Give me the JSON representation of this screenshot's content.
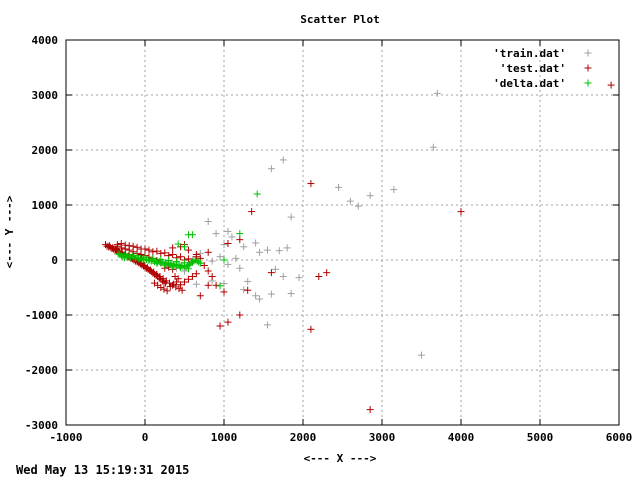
{
  "timestamp": "Wed May 13 15:19:31 2015",
  "chart_data": {
    "type": "scatter",
    "title": "Scatter Plot",
    "xlabel": "<--- X --->",
    "ylabel": "<--- Y --->",
    "xlim": [
      -1000,
      6000
    ],
    "ylim": [
      -3000,
      4000
    ],
    "xticks": [
      -1000,
      0,
      1000,
      2000,
      3000,
      4000,
      5000,
      6000
    ],
    "yticks": [
      -3000,
      -2000,
      -1000,
      0,
      1000,
      2000,
      3000,
      4000
    ],
    "grid": true,
    "legend_position": "top-right",
    "series": [
      {
        "name": "'train.dat'",
        "color": "#a0a0a0",
        "points": [
          [
            3700,
            3030
          ],
          [
            3650,
            2050
          ],
          [
            1750,
            1820
          ],
          [
            1600,
            1660
          ],
          [
            2450,
            1320
          ],
          [
            3150,
            1280
          ],
          [
            2850,
            1170
          ],
          [
            2600,
            1070
          ],
          [
            2700,
            980
          ],
          [
            1850,
            780
          ],
          [
            800,
            700
          ],
          [
            1050,
            520
          ],
          [
            900,
            480
          ],
          [
            1100,
            420
          ],
          [
            1400,
            310
          ],
          [
            1000,
            280
          ],
          [
            1250,
            240
          ],
          [
            1800,
            220
          ],
          [
            1550,
            180
          ],
          [
            1450,
            140
          ],
          [
            700,
            120
          ],
          [
            950,
            60
          ],
          [
            1150,
            30
          ],
          [
            600,
            0
          ],
          [
            850,
            -20
          ],
          [
            1050,
            -80
          ],
          [
            1200,
            -150
          ],
          [
            1650,
            -170
          ],
          [
            1750,
            -300
          ],
          [
            1950,
            -320
          ],
          [
            850,
            -380
          ],
          [
            1300,
            -390
          ],
          [
            1000,
            -430
          ],
          [
            650,
            -440
          ],
          [
            1250,
            -540
          ],
          [
            1850,
            -610
          ],
          [
            1600,
            -620
          ],
          [
            1400,
            -650
          ],
          [
            1450,
            -710
          ],
          [
            1550,
            -1180
          ],
          [
            3500,
            -1730
          ],
          [
            500,
            -200
          ],
          [
            400,
            -150
          ],
          [
            300,
            -100
          ],
          [
            200,
            -50
          ],
          [
            1700,
            170
          ]
        ]
      },
      {
        "name": "'test.dat'",
        "color": "#b00000",
        "points": [
          [
            5900,
            3180
          ],
          [
            2100,
            1390
          ],
          [
            4000,
            880
          ],
          [
            1350,
            880
          ],
          [
            1200,
            370
          ],
          [
            1050,
            300
          ],
          [
            800,
            140
          ],
          [
            650,
            60
          ],
          [
            1600,
            -230
          ],
          [
            2300,
            -230
          ],
          [
            2200,
            -300
          ],
          [
            900,
            -460
          ],
          [
            1000,
            -580
          ],
          [
            1300,
            -550
          ],
          [
            2100,
            -1260
          ],
          [
            950,
            -1200
          ],
          [
            1050,
            -1130
          ],
          [
            1200,
            -1000
          ],
          [
            800,
            -460
          ],
          [
            700,
            -650
          ],
          [
            2850,
            -2720
          ],
          [
            -500,
            280
          ],
          [
            -480,
            250
          ],
          [
            -460,
            240
          ],
          [
            -440,
            230
          ],
          [
            -420,
            210
          ],
          [
            -400,
            200
          ],
          [
            -380,
            180
          ],
          [
            -360,
            170
          ],
          [
            -340,
            150
          ],
          [
            -320,
            140
          ],
          [
            -300,
            120
          ],
          [
            -280,
            100
          ],
          [
            -260,
            90
          ],
          [
            -240,
            70
          ],
          [
            -220,
            60
          ],
          [
            -200,
            50
          ],
          [
            -180,
            30
          ],
          [
            -160,
            20
          ],
          [
            -140,
            0
          ],
          [
            -120,
            -20
          ],
          [
            -100,
            -30
          ],
          [
            -80,
            -50
          ],
          [
            -60,
            -70
          ],
          [
            -40,
            -90
          ],
          [
            -20,
            -110
          ],
          [
            0,
            -130
          ],
          [
            20,
            -150
          ],
          [
            40,
            -170
          ],
          [
            60,
            -190
          ],
          [
            80,
            -210
          ],
          [
            100,
            -240
          ],
          [
            120,
            -260
          ],
          [
            140,
            -280
          ],
          [
            160,
            -300
          ],
          [
            180,
            -330
          ],
          [
            200,
            -350
          ],
          [
            220,
            -380
          ],
          [
            240,
            -400
          ],
          [
            260,
            -420
          ],
          [
            -450,
            260
          ],
          [
            -410,
            220
          ],
          [
            -370,
            190
          ],
          [
            -330,
            160
          ],
          [
            -290,
            130
          ],
          [
            -250,
            100
          ],
          [
            -210,
            70
          ],
          [
            -170,
            40
          ],
          [
            -130,
            10
          ],
          [
            -90,
            -20
          ],
          [
            -50,
            -60
          ],
          [
            -10,
            -100
          ],
          [
            30,
            -140
          ],
          [
            70,
            -180
          ],
          [
            110,
            -220
          ],
          [
            150,
            -260
          ],
          [
            190,
            -300
          ],
          [
            230,
            -340
          ],
          [
            270,
            -380
          ],
          [
            310,
            -420
          ],
          [
            350,
            -460
          ],
          [
            390,
            -490
          ],
          [
            430,
            -520
          ],
          [
            470,
            -550
          ],
          [
            -350,
            250
          ],
          [
            -300,
            220
          ],
          [
            -250,
            200
          ],
          [
            -200,
            180
          ],
          [
            -150,
            150
          ],
          [
            -100,
            120
          ],
          [
            -50,
            100
          ],
          [
            0,
            80
          ],
          [
            50,
            50
          ],
          [
            100,
            20
          ],
          [
            150,
            -10
          ],
          [
            200,
            -50
          ],
          [
            250,
            -90
          ],
          [
            300,
            -130
          ],
          [
            350,
            -170
          ],
          [
            -300,
            300
          ],
          [
            -200,
            260
          ],
          [
            -100,
            230
          ],
          [
            0,
            200
          ],
          [
            100,
            150
          ],
          [
            200,
            120
          ],
          [
            300,
            80
          ],
          [
            400,
            40
          ],
          [
            500,
            0
          ],
          [
            600,
            -40
          ],
          [
            500,
            280
          ],
          [
            450,
            240
          ],
          [
            350,
            220
          ],
          [
            550,
            180
          ],
          [
            650,
            100
          ],
          [
            700,
            30
          ],
          [
            750,
            -100
          ],
          [
            800,
            -200
          ],
          [
            850,
            -300
          ],
          [
            600,
            -300
          ],
          [
            550,
            -350
          ],
          [
            500,
            -400
          ],
          [
            450,
            -450
          ],
          [
            650,
            -250
          ],
          [
            250,
            -150
          ],
          [
            -150,
            250
          ],
          [
            -250,
            270
          ],
          [
            -350,
            280
          ],
          [
            -50,
            200
          ],
          [
            50,
            180
          ],
          [
            150,
            160
          ],
          [
            250,
            130
          ],
          [
            350,
            100
          ],
          [
            450,
            60
          ],
          [
            550,
            20
          ],
          [
            120,
            -420
          ],
          [
            160,
            -460
          ],
          [
            200,
            -500
          ],
          [
            240,
            -530
          ],
          [
            280,
            -560
          ],
          [
            320,
            -480
          ],
          [
            360,
            -440
          ],
          [
            400,
            -400
          ],
          [
            420,
            -340
          ],
          [
            380,
            -300
          ]
        ]
      },
      {
        "name": "'delta.dat'",
        "color": "#00c000",
        "points": [
          [
            1420,
            1200
          ],
          [
            1200,
            480
          ],
          [
            550,
            460
          ],
          [
            600,
            460
          ],
          [
            420,
            290
          ],
          [
            500,
            240
          ],
          [
            1000,
            0
          ],
          [
            950,
            -470
          ],
          [
            -300,
            80
          ],
          [
            -280,
            60
          ],
          [
            -260,
            90
          ],
          [
            -240,
            70
          ],
          [
            -220,
            50
          ],
          [
            -200,
            60
          ],
          [
            -180,
            40
          ],
          [
            -160,
            70
          ],
          [
            -140,
            50
          ],
          [
            -120,
            30
          ],
          [
            -100,
            40
          ],
          [
            -80,
            20
          ],
          [
            -60,
            30
          ],
          [
            -40,
            10
          ],
          [
            -20,
            20
          ],
          [
            0,
            0
          ],
          [
            20,
            10
          ],
          [
            40,
            -10
          ],
          [
            60,
            0
          ],
          [
            80,
            -20
          ],
          [
            100,
            -10
          ],
          [
            120,
            -30
          ],
          [
            140,
            -20
          ],
          [
            160,
            -40
          ],
          [
            180,
            -30
          ],
          [
            200,
            -50
          ],
          [
            220,
            -40
          ],
          [
            240,
            -60
          ],
          [
            260,
            -50
          ],
          [
            280,
            -70
          ],
          [
            300,
            -60
          ],
          [
            320,
            -80
          ],
          [
            340,
            -70
          ],
          [
            360,
            -90
          ],
          [
            380,
            -80
          ],
          [
            400,
            -100
          ],
          [
            420,
            -90
          ],
          [
            440,
            -110
          ],
          [
            460,
            -100
          ],
          [
            480,
            -120
          ],
          [
            500,
            -110
          ],
          [
            520,
            -130
          ],
          [
            540,
            -100
          ],
          [
            560,
            -80
          ],
          [
            580,
            -60
          ],
          [
            600,
            -40
          ],
          [
            620,
            -20
          ],
          [
            640,
            0
          ],
          [
            660,
            -20
          ],
          [
            680,
            -40
          ],
          [
            700,
            -60
          ],
          [
            -320,
            100
          ],
          [
            -340,
            110
          ],
          [
            -260,
            40
          ],
          [
            -200,
            100
          ],
          [
            -100,
            80
          ],
          [
            0,
            50
          ],
          [
            100,
            30
          ],
          [
            200,
            10
          ],
          [
            300,
            -10
          ],
          [
            400,
            -30
          ],
          [
            500,
            -50
          ],
          [
            150,
            -60
          ],
          [
            250,
            -90
          ],
          [
            350,
            -120
          ],
          [
            450,
            -140
          ],
          [
            550,
            -160
          ]
        ]
      }
    ]
  }
}
